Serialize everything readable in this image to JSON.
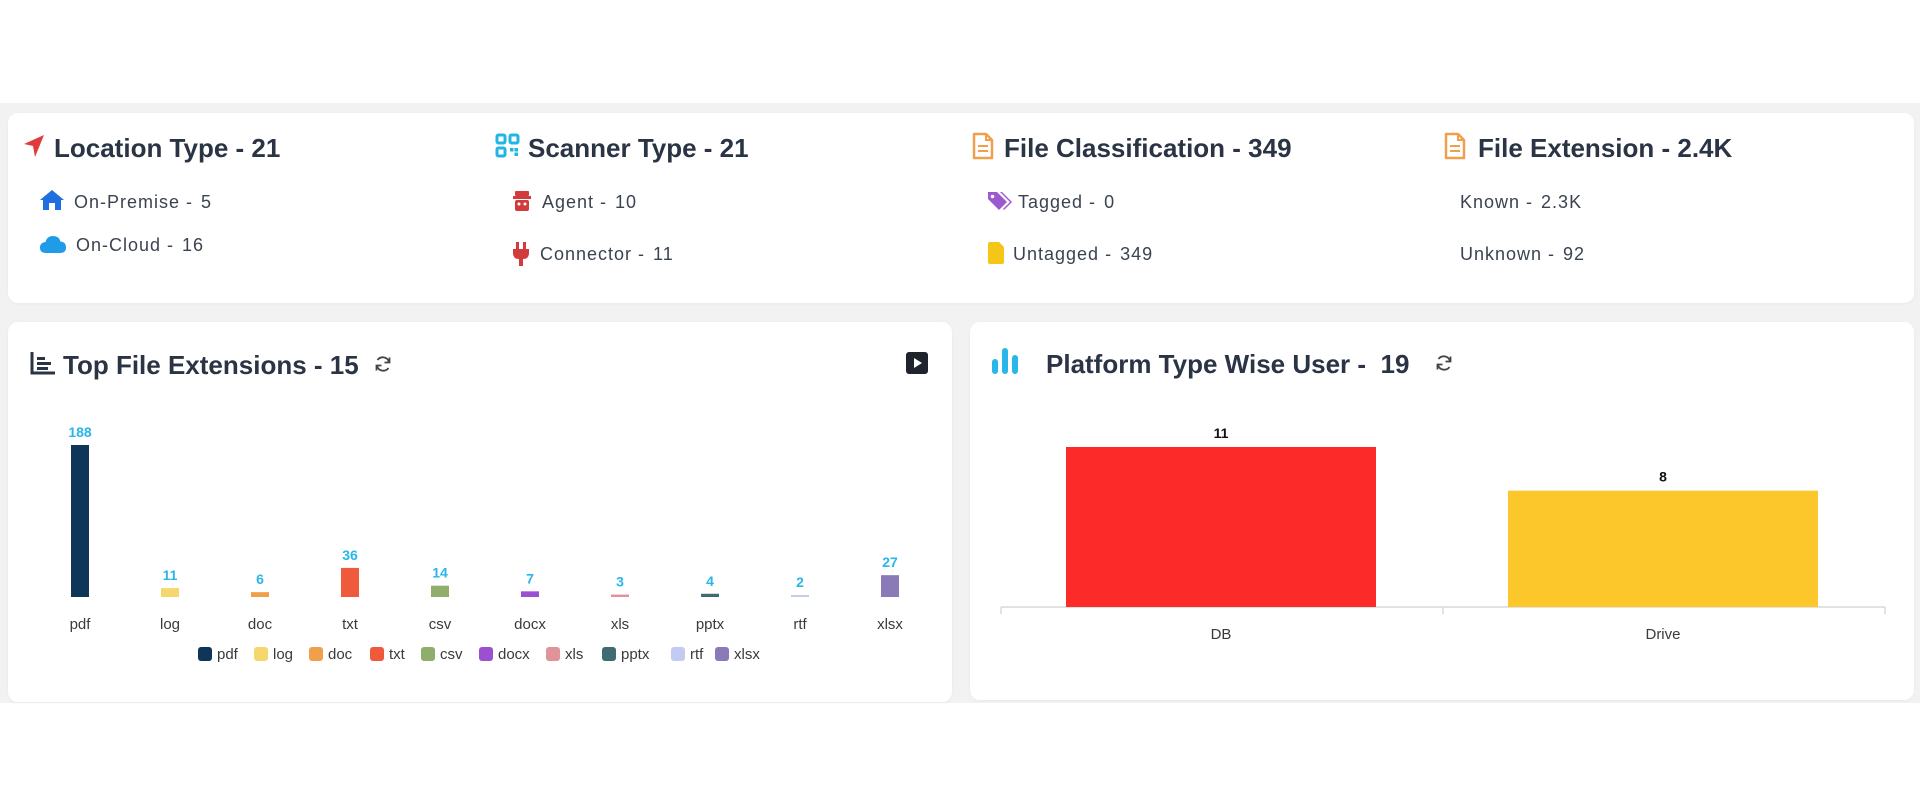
{
  "summary": {
    "location": {
      "title": "Location Type - 21",
      "items": [
        {
          "label": "On-Premise -",
          "value": "5"
        },
        {
          "label": "On-Cloud -",
          "value": "16"
        }
      ]
    },
    "scanner": {
      "title": "Scanner Type - 21",
      "items": [
        {
          "label": "Agent -",
          "value": "10"
        },
        {
          "label": "Connector -",
          "value": "11"
        }
      ]
    },
    "classification": {
      "title": "File Classification - 349",
      "items": [
        {
          "label": "Tagged -",
          "value": "0"
        },
        {
          "label": "Untagged -",
          "value": "349"
        }
      ]
    },
    "extension": {
      "title": "File Extension - 2.4K",
      "items": [
        {
          "label": "Known -",
          "value": "2.3K"
        },
        {
          "label": "Unknown -",
          "value": "92"
        }
      ]
    }
  },
  "icons": {
    "location": "location-arrow-icon",
    "on_premise": "home-icon",
    "on_cloud": "cloud-icon",
    "scanner": "qr-scanner-icon",
    "agent": "agent-icon",
    "connector": "plug-icon",
    "classification": "file-icon",
    "tagged": "tags-icon",
    "untagged": "file-icon",
    "extension": "file-icon",
    "ext_chart": "bar-chart-icon",
    "platform_chart": "bar-chart-icon",
    "refresh": "refresh-icon",
    "play": "play-icon"
  },
  "colors": {
    "location_arrow": "#e03a3a",
    "home": "#1f6fe0",
    "cloud": "#1f9be8",
    "scanner": "#1fb6e0",
    "agent": "#d23b3b",
    "plug": "#d23b3b",
    "file_orange": "#f0a04b",
    "tag": "#9b59d0",
    "untagged": "#f5c518",
    "data_label": "#29b6e8",
    "platform_icon": "#29b6e8"
  },
  "ext_chart": {
    "title": "Top File Extensions - 15"
  },
  "platform_chart": {
    "title": "Platform Type Wise User -  19"
  },
  "chart_data": [
    {
      "type": "bar",
      "categories": [
        "pdf",
        "log",
        "doc",
        "txt",
        "csv",
        "docx",
        "xls",
        "pptx",
        "rtf",
        "xlsx"
      ],
      "values": [
        188,
        11,
        6,
        36,
        14,
        7,
        3,
        4,
        2,
        27
      ],
      "colors": [
        "#0f3558",
        "#f5d76e",
        "#f0a04b",
        "#ef5a3c",
        "#8fae6b",
        "#9b4fd1",
        "#e0949a",
        "#3f6b73",
        "#c4cbf3",
        "#8a7ab8"
      ],
      "legend": [
        "pdf",
        "log",
        "doc",
        "txt",
        "csv",
        "docx",
        "xls",
        "pptx",
        "rtf",
        "xlsx"
      ],
      "legend_position": "bottom",
      "data_labels": true,
      "grid": false
    },
    {
      "type": "bar",
      "categories": [
        "DB",
        "Drive"
      ],
      "values": [
        11,
        8
      ],
      "colors": [
        "#fd2a2a",
        "#fcc72b"
      ],
      "data_labels": true,
      "grid": false
    }
  ]
}
